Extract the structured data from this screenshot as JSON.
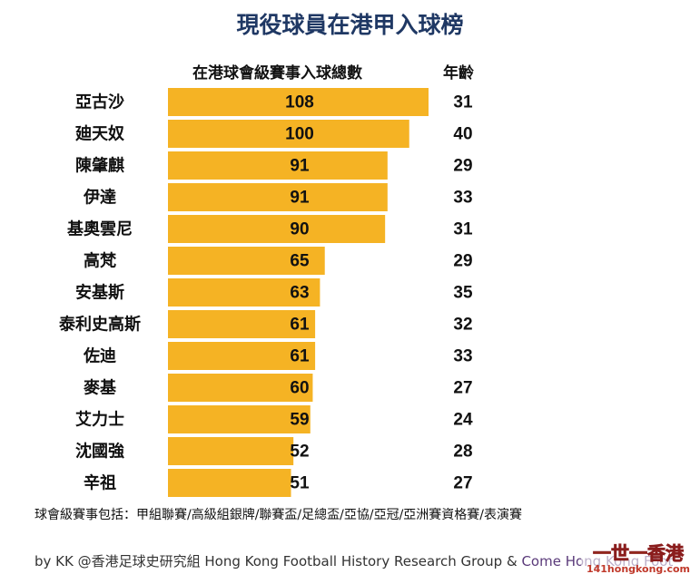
{
  "title": "現役球員在港甲入球榜",
  "headers": {
    "goals": "在港球會級賽事入球總數",
    "age": "年齡"
  },
  "colors": {
    "bar": "#f5b324",
    "title": "#1f3864"
  },
  "chart_data": {
    "type": "bar",
    "orientation": "horizontal",
    "title": "現役球員在港甲入球榜",
    "categories": [
      "亞古沙",
      "廸天奴",
      "陳肇麒",
      "伊達",
      "基奧雲尼",
      "高梵",
      "安基斯",
      "泰利史高斯",
      "佐迪",
      "麥基",
      "艾力士",
      "沈國強",
      "辛祖"
    ],
    "series": [
      {
        "name": "在港球會級賽事入球總數",
        "values": [
          108,
          100,
          91,
          91,
          90,
          65,
          63,
          61,
          61,
          60,
          59,
          52,
          51
        ]
      },
      {
        "name": "年齡",
        "values": [
          31,
          40,
          29,
          33,
          31,
          29,
          35,
          32,
          33,
          27,
          24,
          28,
          27
        ]
      }
    ],
    "xlim": [
      0,
      108
    ],
    "grid": false,
    "legend": "none"
  },
  "footnote": "球會級賽事包括：甲組聯賽/高級組銀牌/聯賽盃/足總盃/亞協/亞冠/亞洲賽資格賽/表演賽",
  "credit": {
    "main": "by KK @香港足球史研究組 Hong Kong Football History Research Group & ",
    "accent": "Come Hong Kong Foot"
  },
  "watermark": {
    "line1": "一世一香港",
    "line2": "141hongkong.com"
  }
}
